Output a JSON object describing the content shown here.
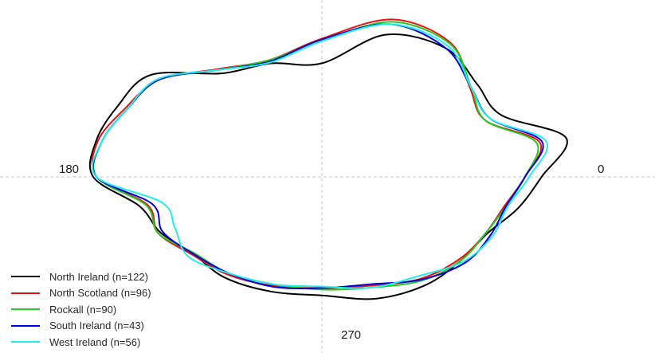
{
  "chart_data": {
    "type": "line",
    "coordinate_system": "polar",
    "angle_labels": {
      "east": "0",
      "west": "180",
      "south": "270"
    },
    "grid": "dashed crosshair through origin",
    "legend_position": "bottom-left",
    "series": [
      {
        "name": "North Ireland (n=122)",
        "color": "#000000",
        "points": [
          [
            0,
            2.65
          ],
          [
            15,
            3.05
          ],
          [
            30,
            2.5
          ],
          [
            45,
            2.65
          ],
          [
            60,
            3.0
          ],
          [
            75,
            2.98
          ],
          [
            90,
            2.3
          ],
          [
            105,
            2.38
          ],
          [
            120,
            2.42
          ],
          [
            135,
            2.92
          ],
          [
            150,
            2.85
          ],
          [
            165,
            2.82
          ],
          [
            180,
            2.76
          ],
          [
            195,
            2.28
          ],
          [
            210,
            2.25
          ],
          [
            225,
            2.2
          ],
          [
            240,
            2.35
          ],
          [
            255,
            2.4
          ],
          [
            270,
            2.4
          ],
          [
            285,
            2.55
          ],
          [
            300,
            2.52
          ],
          [
            315,
            2.38
          ],
          [
            330,
            2.3
          ],
          [
            345,
            2.45
          ]
        ]
      },
      {
        "name": "North Scotland (n=96)",
        "color": "#ee1010",
        "points": [
          [
            0,
            2.45
          ],
          [
            15,
            2.72
          ],
          [
            30,
            2.28
          ],
          [
            45,
            2.53
          ],
          [
            60,
            3.12
          ],
          [
            75,
            3.3
          ],
          [
            90,
            2.8
          ],
          [
            105,
            2.45
          ],
          [
            120,
            2.52
          ],
          [
            135,
            2.78
          ],
          [
            150,
            2.75
          ],
          [
            165,
            2.8
          ],
          [
            180,
            2.72
          ],
          [
            195,
            2.18
          ],
          [
            210,
            2.28
          ],
          [
            225,
            2.22
          ],
          [
            240,
            2.28
          ],
          [
            255,
            2.28
          ],
          [
            270,
            2.25
          ],
          [
            285,
            2.28
          ],
          [
            300,
            2.38
          ],
          [
            315,
            2.35
          ],
          [
            330,
            2.28
          ],
          [
            345,
            2.28
          ]
        ]
      },
      {
        "name": "Rockall (n=90)",
        "color": "#22cc22",
        "points": [
          [
            0,
            2.45
          ],
          [
            15,
            2.68
          ],
          [
            30,
            2.28
          ],
          [
            45,
            2.55
          ],
          [
            60,
            3.1
          ],
          [
            75,
            3.25
          ],
          [
            90,
            2.75
          ],
          [
            105,
            2.45
          ],
          [
            120,
            2.5
          ],
          [
            135,
            2.78
          ],
          [
            150,
            2.72
          ],
          [
            165,
            2.75
          ],
          [
            180,
            2.72
          ],
          [
            195,
            2.2
          ],
          [
            210,
            2.28
          ],
          [
            225,
            2.18
          ],
          [
            240,
            2.25
          ],
          [
            255,
            2.25
          ],
          [
            270,
            2.28
          ],
          [
            285,
            2.32
          ],
          [
            300,
            2.42
          ],
          [
            315,
            2.38
          ],
          [
            330,
            2.28
          ],
          [
            345,
            2.3
          ]
        ]
      },
      {
        "name": "South Ireland (n=43)",
        "color": "#0000dd",
        "points": [
          [
            0,
            2.45
          ],
          [
            15,
            2.75
          ],
          [
            30,
            2.35
          ],
          [
            45,
            2.55
          ],
          [
            60,
            3.0
          ],
          [
            75,
            3.2
          ],
          [
            90,
            2.78
          ],
          [
            105,
            2.42
          ],
          [
            120,
            2.5
          ],
          [
            135,
            2.78
          ],
          [
            150,
            2.72
          ],
          [
            165,
            2.75
          ],
          [
            180,
            2.72
          ],
          [
            195,
            2.12
          ],
          [
            210,
            2.22
          ],
          [
            225,
            2.2
          ],
          [
            240,
            2.25
          ],
          [
            255,
            2.3
          ],
          [
            270,
            2.25
          ],
          [
            285,
            2.25
          ],
          [
            300,
            2.4
          ],
          [
            315,
            2.45
          ],
          [
            330,
            2.35
          ],
          [
            345,
            2.3
          ]
        ]
      },
      {
        "name": "West Ireland (n=56)",
        "color": "#22eeee",
        "points": [
          [
            0,
            2.5
          ],
          [
            15,
            2.8
          ],
          [
            30,
            2.35
          ],
          [
            45,
            2.55
          ],
          [
            60,
            3.05
          ],
          [
            75,
            3.2
          ],
          [
            90,
            2.75
          ],
          [
            105,
            2.4
          ],
          [
            120,
            2.5
          ],
          [
            135,
            2.8
          ],
          [
            150,
            2.72
          ],
          [
            165,
            2.75
          ],
          [
            180,
            2.72
          ],
          [
            195,
            2.0
          ],
          [
            210,
            2.05
          ],
          [
            225,
            2.28
          ],
          [
            240,
            2.25
          ],
          [
            255,
            2.25
          ],
          [
            270,
            2.22
          ],
          [
            285,
            2.32
          ],
          [
            300,
            2.32
          ],
          [
            315,
            2.42
          ],
          [
            330,
            2.38
          ],
          [
            345,
            2.32
          ]
        ]
      }
    ]
  }
}
